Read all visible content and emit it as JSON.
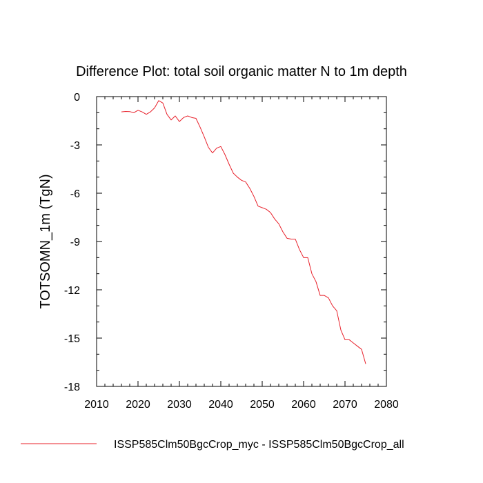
{
  "chart_data": {
    "type": "line",
    "title": "Difference Plot: total soil organic matter N to 1m depth",
    "xlabel": "",
    "ylabel": "TOTSOMN_1m  (TgN)",
    "xlim": [
      2010,
      2080
    ],
    "ylim": [
      -18,
      0
    ],
    "xticks": [
      2010,
      2020,
      2030,
      2040,
      2050,
      2060,
      2070,
      2080
    ],
    "yticks": [
      0,
      -3,
      -6,
      -9,
      -12,
      -15,
      -18
    ],
    "xtick_labels": [
      "2010",
      "2020",
      "2030",
      "2040",
      "2050",
      "2060",
      "2070",
      "2080"
    ],
    "ytick_labels": [
      "0",
      "-3",
      "-6",
      "-9",
      "-12",
      "-15",
      "-18"
    ],
    "grid": false,
    "legend_position": "bottom",
    "series": [
      {
        "name": "ISSP585Clm50BgcCrop_myc - ISSP585Clm50BgcCrop_all",
        "color": "#e8202a",
        "x": [
          2016,
          2017,
          2018,
          2019,
          2020,
          2021,
          2022,
          2023,
          2024,
          2025,
          2026,
          2027,
          2028,
          2029,
          2030,
          2031,
          2032,
          2033,
          2034,
          2035,
          2036,
          2037,
          2038,
          2039,
          2040,
          2041,
          2042,
          2043,
          2044,
          2045,
          2046,
          2047,
          2048,
          2049,
          2050,
          2051,
          2052,
          2053,
          2054,
          2055,
          2056,
          2057,
          2058,
          2059,
          2060,
          2061,
          2062,
          2063,
          2064,
          2065,
          2066,
          2067,
          2068,
          2069,
          2070,
          2071,
          2072,
          2073,
          2074,
          2075
        ],
        "values": [
          -0.95,
          -0.92,
          -0.93,
          -1.0,
          -0.85,
          -0.95,
          -1.1,
          -0.95,
          -0.7,
          -0.25,
          -0.4,
          -1.1,
          -1.45,
          -1.2,
          -1.55,
          -1.3,
          -1.2,
          -1.3,
          -1.35,
          -1.9,
          -2.5,
          -3.15,
          -3.5,
          -3.2,
          -3.1,
          -3.6,
          -4.2,
          -4.75,
          -5.0,
          -5.2,
          -5.3,
          -5.7,
          -6.2,
          -6.8,
          -6.9,
          -7.0,
          -7.2,
          -7.6,
          -7.9,
          -8.4,
          -8.8,
          -8.85,
          -8.85,
          -9.5,
          -10.0,
          -10.0,
          -11.0,
          -11.5,
          -12.35,
          -12.35,
          -12.5,
          -13.0,
          -13.3,
          -14.5,
          -15.1,
          -15.1,
          -15.3,
          -15.5,
          -15.7,
          -16.6
        ]
      }
    ]
  }
}
